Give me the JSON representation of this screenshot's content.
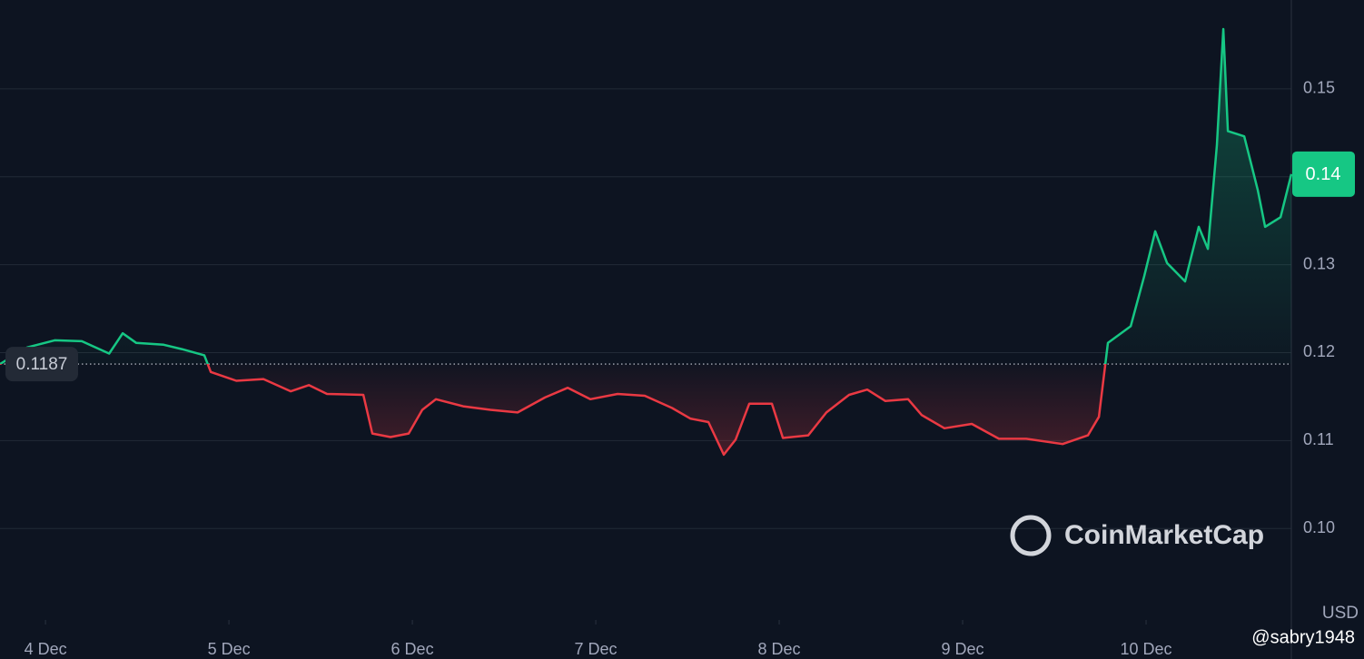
{
  "chart_data": {
    "type": "line",
    "x": [
      3.752,
      3.901,
      4.05,
      4.198,
      4.347,
      4.421,
      4.495,
      4.644,
      4.743,
      4.866,
      4.901,
      5.04,
      5.188,
      5.337,
      5.436,
      5.535,
      5.733,
      5.782,
      5.881,
      5.98,
      6.054,
      6.129,
      6.277,
      6.426,
      6.574,
      6.723,
      6.847,
      6.97,
      7.119,
      7.267,
      7.416,
      7.515,
      7.614,
      7.698,
      7.762,
      7.837,
      7.96,
      8.02,
      8.158,
      8.257,
      8.381,
      8.48,
      8.579,
      8.703,
      8.777,
      8.901,
      9.05,
      9.198,
      9.347,
      9.545,
      9.683,
      9.743,
      9.792,
      9.916,
      9.99,
      10.05,
      10.114,
      10.213,
      10.287,
      10.337,
      10.386,
      10.421,
      10.446,
      10.535,
      10.609,
      10.649,
      10.733,
      10.792
    ],
    "series": [
      {
        "values": [
          0.1187,
          0.1206,
          0.1214,
          0.1213,
          0.1199,
          0.1222,
          0.1211,
          0.1209,
          0.1204,
          0.1197,
          0.1178,
          0.1168,
          0.117,
          0.1156,
          0.1163,
          0.1153,
          0.1152,
          0.1108,
          0.1104,
          0.1108,
          0.1135,
          0.1147,
          0.1139,
          0.1135,
          0.1132,
          0.1149,
          0.116,
          0.1147,
          0.1153,
          0.1151,
          0.1137,
          0.1125,
          0.1121,
          0.1084,
          0.1101,
          0.1142,
          0.1142,
          0.1103,
          0.1106,
          0.1132,
          0.1152,
          0.1158,
          0.1145,
          0.1147,
          0.1129,
          0.1114,
          0.1119,
          0.1102,
          0.1102,
          0.1096,
          0.1106,
          0.1127,
          0.1211,
          0.123,
          0.1287,
          0.1338,
          0.1302,
          0.1281,
          0.1343,
          0.1318,
          0.1436,
          0.1568,
          0.1452,
          0.1446,
          0.1385,
          0.1343,
          0.1354,
          0.1403
        ],
        "up_color": "#16c784",
        "down_color": "#ea3943"
      }
    ],
    "baseline": 0.1187,
    "last_value_label": "0.14",
    "xlim": [
      3.752,
      10.792
    ],
    "xticks": [
      {
        "value": 4,
        "label": "4 Dec"
      },
      {
        "value": 5,
        "label": "5 Dec"
      },
      {
        "value": 6,
        "label": "6 Dec"
      },
      {
        "value": 7,
        "label": "7 Dec"
      },
      {
        "value": 8,
        "label": "8 Dec"
      },
      {
        "value": 9,
        "label": "9 Dec"
      },
      {
        "value": 10,
        "label": "10 Dec"
      }
    ],
    "ylim": [
      0.0896,
      0.1601
    ],
    "yticks": [
      {
        "value": 0.1,
        "label": "0.10"
      },
      0.11,
      0.12,
      0.13,
      0.14,
      0.15
    ],
    "grid": true,
    "currency_label": "USD",
    "watermark": "CoinMarketCap",
    "credit": "@sabry1948"
  }
}
